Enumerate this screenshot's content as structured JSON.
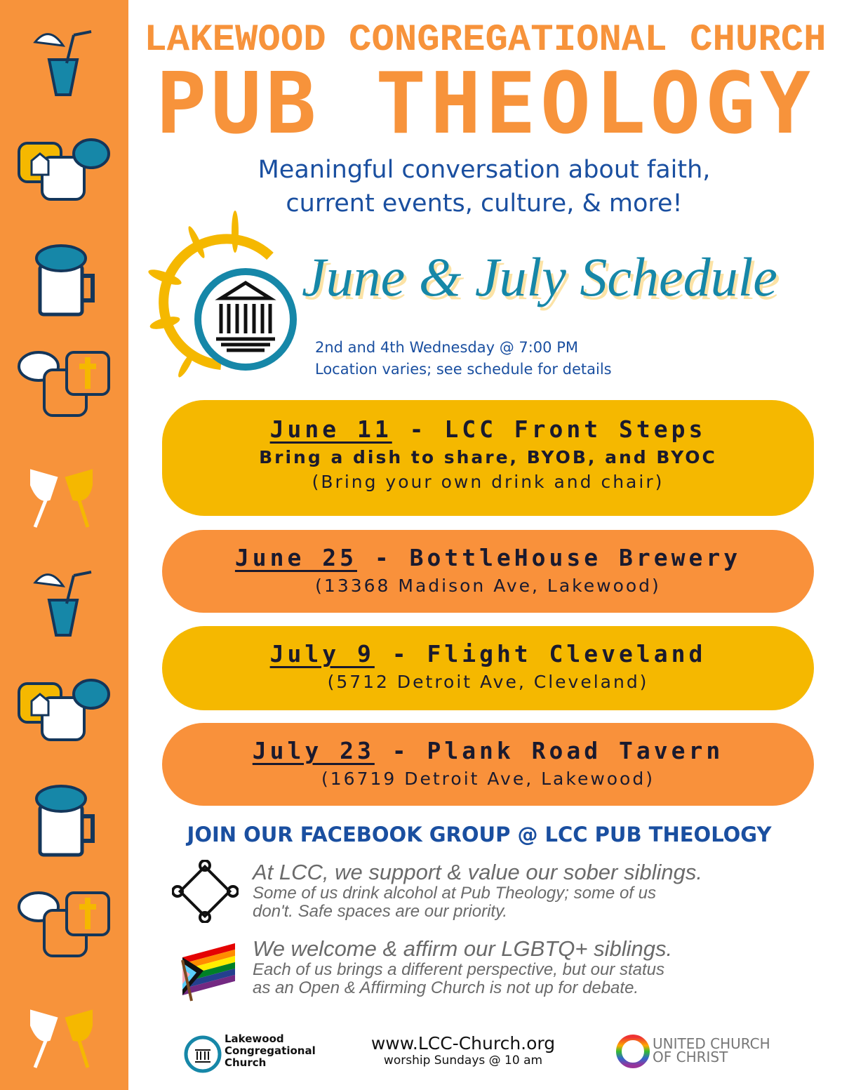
{
  "header": {
    "church": "LAKEWOOD CONGREGATIONAL CHURCH",
    "title": "PUB THEOLOGY",
    "subtitle_line1": "Meaningful conversation about faith,",
    "subtitle_line2": "current events, culture, & more!"
  },
  "schedule": {
    "title": "June & July Schedule",
    "when": "2nd and 4th Wednesday @ 7:00 PM",
    "where": "Location varies; see schedule for details"
  },
  "events": [
    {
      "date": "June 11",
      "place": "LCC Front Steps",
      "line1": "Bring a dish to share, BYOB, and BYOC",
      "line2": "(Bring your own drink and chair)",
      "color": "#F5B800"
    },
    {
      "date": "June 25",
      "place": "BottleHouse Brewery",
      "line2": "(13368 Madison Ave, Lakewood)",
      "color": "#F9913B"
    },
    {
      "date": "July 9",
      "place": "Flight Cleveland",
      "line2": "(5712 Detroit Ave, Cleveland)",
      "color": "#F5B800"
    },
    {
      "date": "July 23",
      "place": "Plank Road Tavern",
      "line2": "(16719 Detroit Ave, Lakewood)",
      "color": "#F9913B"
    }
  ],
  "facebook": "JOIN OUR FACEBOOK GROUP @ LCC PUB THEOLOGY",
  "notes": [
    {
      "icon": "linked-hands-icon",
      "headline": "At LCC, we support & value our sober siblings.",
      "line1": "Some of us drink alcohol at Pub Theology; some of us",
      "line2": "don't. Safe spaces are our priority."
    },
    {
      "icon": "progress-pride-flag-icon",
      "headline": "We welcome & affirm our LGBTQ+ siblings.",
      "line1": "Each of us brings a different perspective, but our status",
      "line2": "as an Open & Affirming Church is not up for debate."
    }
  ],
  "footer": {
    "logo_l1": "Lakewood",
    "logo_l2": "Congregational",
    "logo_l3": "Church",
    "website": "www.LCC-Church.org",
    "worship": "worship Sundays @ 10 am",
    "ucc_l1": "UNITED CHURCH",
    "ucc_l2": "OF CHRIST"
  },
  "sidebar_icons": [
    "drink-icon",
    "church-chat-icon",
    "beer-mug-icon",
    "chat-cross-icon",
    "wine-toast-icon",
    "drink-icon",
    "church-chat-icon",
    "beer-mug-icon",
    "chat-cross-icon",
    "wine-toast-icon"
  ]
}
